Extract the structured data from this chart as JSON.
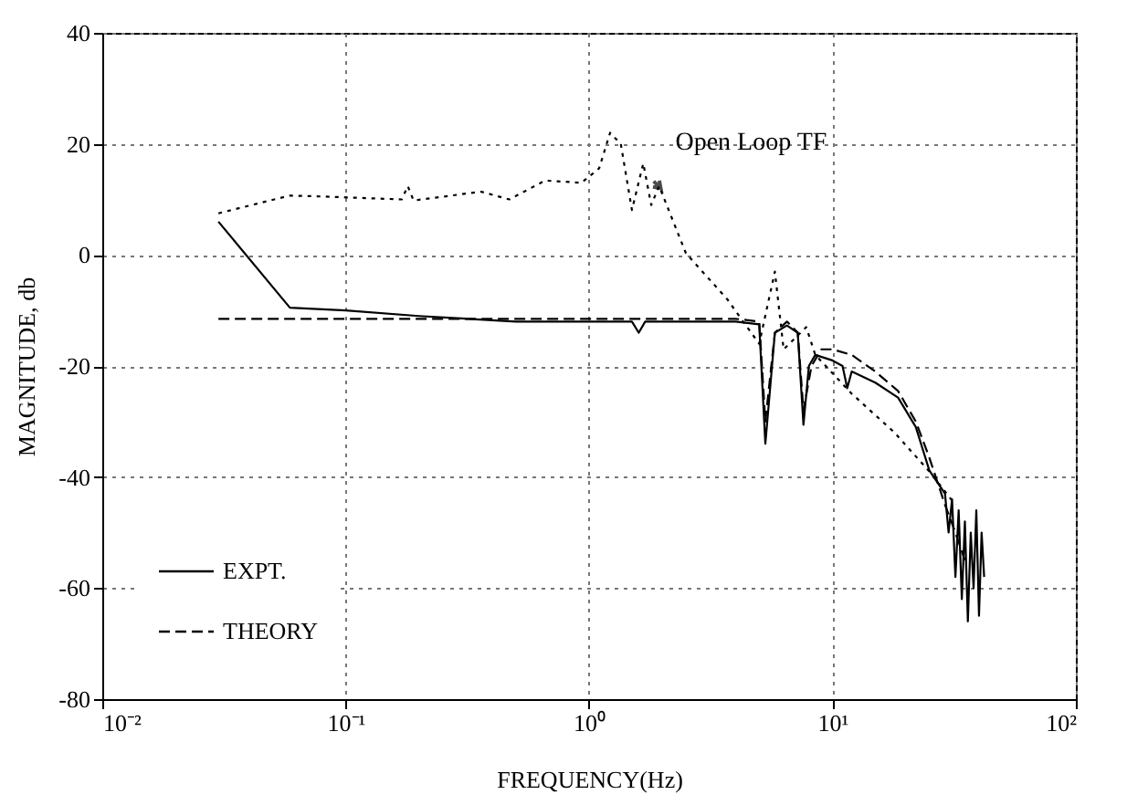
{
  "chart_data": {
    "type": "line",
    "xlabel": "FREQUENCY(Hz)",
    "ylabel": "MAGNITUDE, db",
    "log": "x",
    "xlim": [
      0.01,
      100
    ],
    "ylim": [
      -80,
      40
    ],
    "xticks": [
      {
        "value": 0.01,
        "label": "10⁻²"
      },
      {
        "value": 0.1,
        "label": "10⁻¹"
      },
      {
        "value": 1,
        "label": "10⁰"
      },
      {
        "value": 10,
        "label": "10¹"
      },
      {
        "value": 100,
        "label": "10²"
      }
    ],
    "yticks": [
      -80,
      -60,
      -40,
      -20,
      0,
      20,
      40
    ],
    "grid": true,
    "legend": "bottom left",
    "annotations": [
      {
        "text": "Open Loop TF",
        "x": 1.97,
        "y": 12
      }
    ],
    "series": [
      {
        "name": "EXPT.",
        "color": "#000000",
        "line_style": "solid",
        "x": [
          0.03,
          0.059,
          0.1,
          0.2,
          0.5,
          1,
          1.5,
          1.6,
          1.7,
          2.5,
          4,
          5,
          5.3,
          5.8,
          6.5,
          7.2,
          7.6,
          8.0,
          8.5,
          10,
          11,
          11.5,
          12,
          15,
          18.6,
          22,
          25,
          28,
          29,
          30,
          31,
          32,
          33,
          34,
          35,
          36,
          37,
          38,
          39,
          40,
          41,
          42
        ],
        "values": [
          6,
          -9.5,
          -10,
          -11,
          -12,
          -12,
          -12,
          -14,
          -12,
          -12,
          -12,
          -12.5,
          -34,
          -14,
          -12.7,
          -14,
          -30.6,
          -20,
          -18,
          -19,
          -20,
          -24,
          -21,
          -23,
          -25.7,
          -31,
          -38.8,
          -42,
          -43,
          -50,
          -44,
          -58,
          -46,
          -62,
          -48,
          -66,
          -50,
          -60,
          -46,
          -65,
          -50,
          -58
        ]
      },
      {
        "name": "THEORY",
        "color": "#000000",
        "line_style": "dashed",
        "x": [
          0.03,
          0.1,
          0.5,
          1,
          2,
          4,
          5,
          5.3,
          5.8,
          6.5,
          7.2,
          7.6,
          8.2,
          9,
          10,
          12,
          15,
          18.6,
          22,
          25,
          29,
          32,
          35
        ],
        "values": [
          -11.5,
          -11.5,
          -11.5,
          -11.5,
          -11.5,
          -11.5,
          -12,
          -30,
          -14,
          -12,
          -14,
          -28,
          -20,
          -17,
          -17,
          -18,
          -21,
          -24.5,
          -30,
          -36.5,
          -45,
          -50,
          -55
        ]
      },
      {
        "color": "#000000",
        "line_style": "dotted",
        "x": [
          0.03,
          0.059,
          0.083,
          0.17,
          0.18,
          0.19,
          0.36,
          0.47,
          0.66,
          0.93,
          1.1,
          1.22,
          1.35,
          1.5,
          1.67,
          1.8,
          1.94,
          2.5,
          3.7,
          4.2,
          5,
          5.8,
          6.3,
          7.8,
          8.5,
          12,
          18,
          25,
          32
        ],
        "values": [
          7.5,
          10.7,
          10.5,
          10,
          12.4,
          9.8,
          11.4,
          10,
          13.4,
          13,
          15.6,
          22,
          20,
          8.1,
          16.5,
          9,
          12.4,
          0.3,
          -8,
          -11.4,
          -16,
          -3,
          -17,
          -13,
          -18,
          -25,
          -32,
          -39,
          -45
        ]
      }
    ]
  }
}
